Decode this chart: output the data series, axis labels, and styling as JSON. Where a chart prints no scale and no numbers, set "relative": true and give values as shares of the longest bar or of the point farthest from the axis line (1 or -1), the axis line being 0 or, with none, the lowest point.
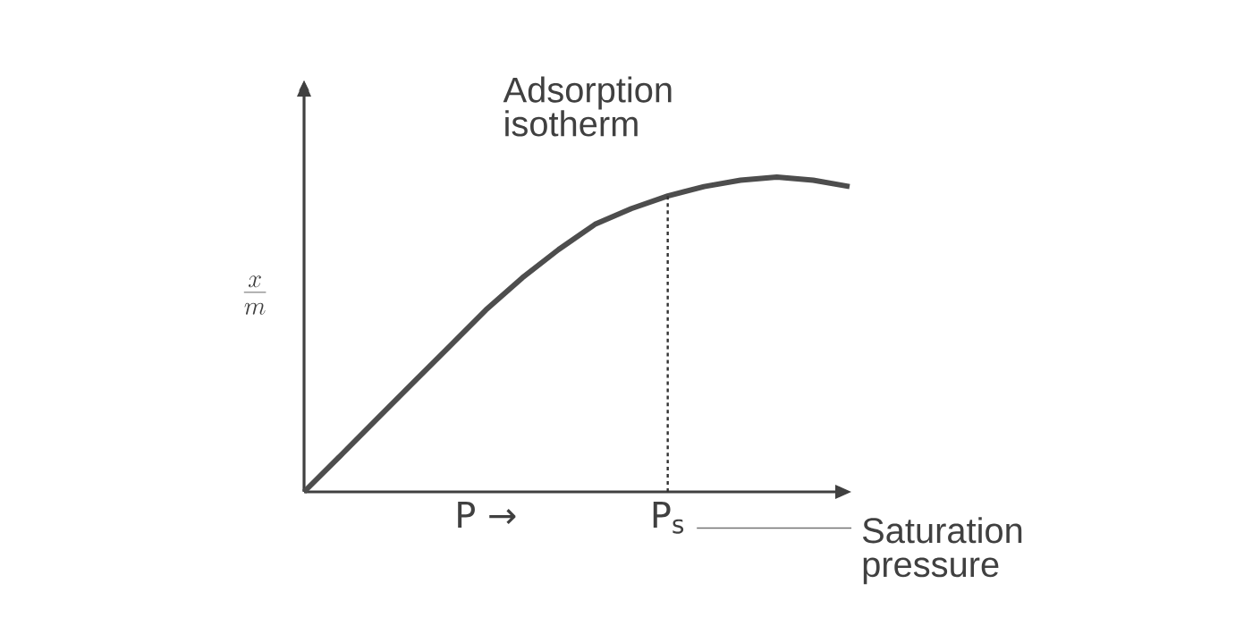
{
  "chart_data": {
    "type": "line",
    "relative": true,
    "title": "Adsorption isotherm",
    "ylabel": "\\frac{x}{m}",
    "categories": [
      null,
      null,
      null,
      null,
      null,
      "P →",
      null,
      null,
      null,
      null,
      "P$_{s}$",
      null,
      null,
      null,
      null,
      null
    ],
    "series": [
      {
        "color": "#4d4d4d",
        "values": [
          0,
          0.115,
          0.231,
          0.347,
          0.462,
          0.578,
          0.68,
          0.77,
          0.85,
          0.9,
          0.94,
          0.97,
          0.99,
          1.0,
          0.99,
          0.97
        ]
      }
    ],
    "ref_lines": [
      {
        "axis": "x",
        "value": "P$_{s}$",
        "line_style": "dotted",
        "color": "#333333"
      }
    ],
    "annotations": [
      "Saturation pressure"
    ],
    "marker": "none",
    "line_style": "solid",
    "grid": false
  }
}
